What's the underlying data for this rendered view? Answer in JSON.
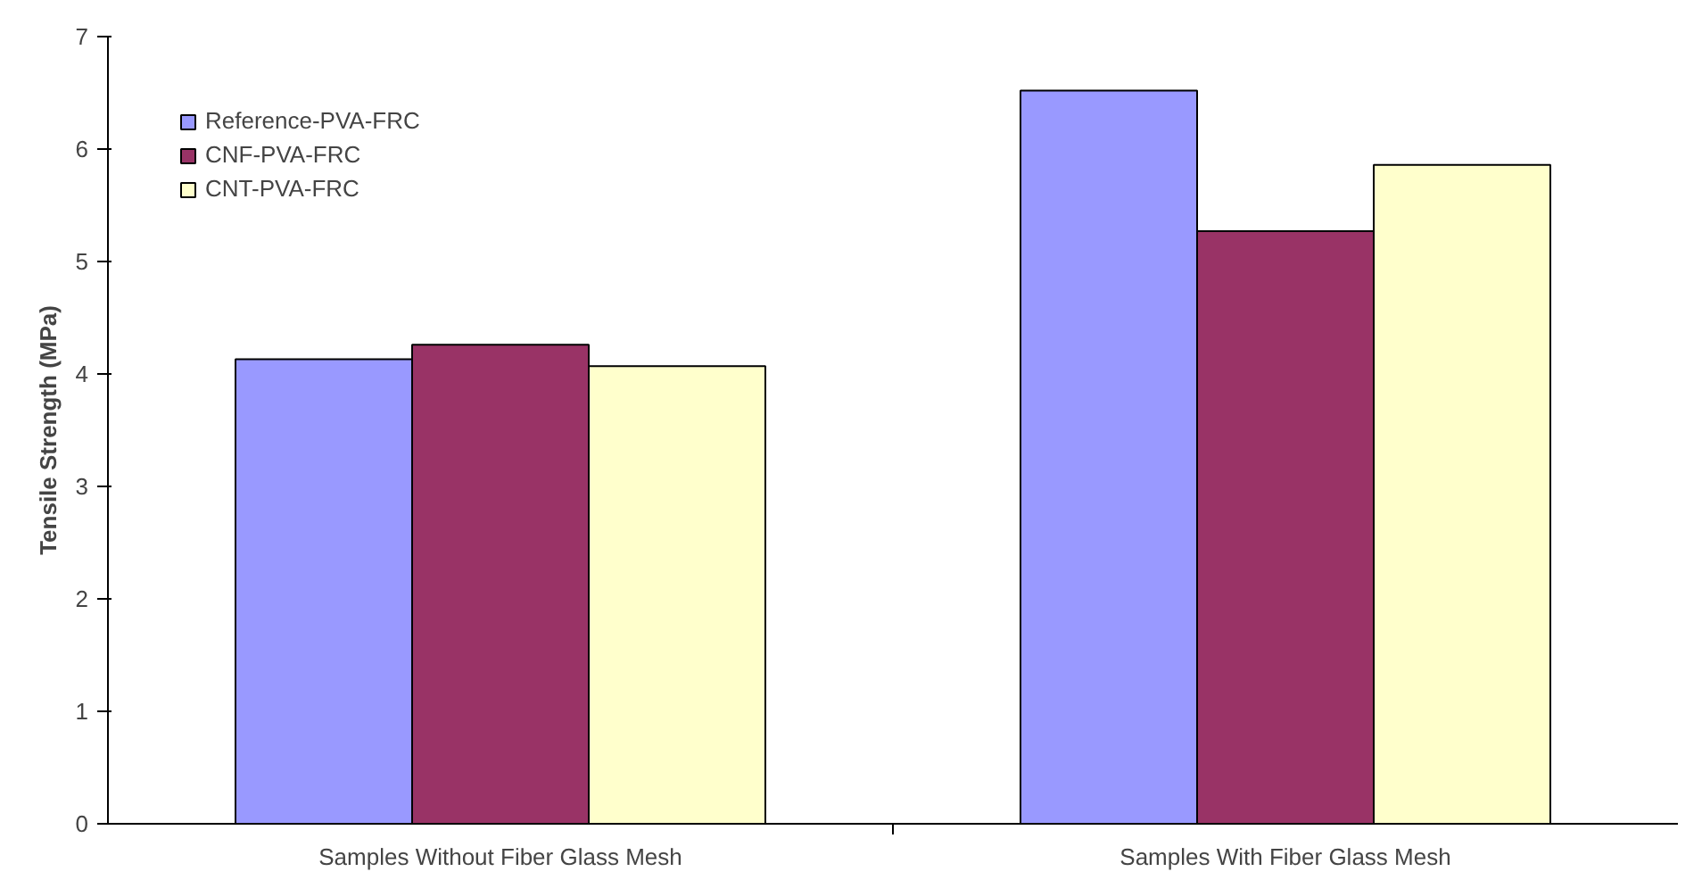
{
  "chart_data": {
    "type": "bar",
    "ylabel": "Tensile Strength (MPa)",
    "categories": [
      "Samples Without Fiber Glass Mesh",
      "Samples With Fiber Glass Mesh"
    ],
    "series": [
      {
        "name": "Reference-PVA-FRC",
        "color": "#9999ff",
        "values": [
          4.13,
          6.52
        ]
      },
      {
        "name": "CNF-PVA-FRC",
        "color": "#993366",
        "values": [
          4.26,
          5.27
        ]
      },
      {
        "name": "CNT-PVA-FRC",
        "color": "#ffffcc",
        "values": [
          4.07,
          5.86
        ]
      }
    ],
    "ylim": [
      0,
      7
    ],
    "yticks": [
      0,
      1,
      2,
      3,
      4,
      5,
      6,
      7
    ],
    "grid": false,
    "legend": "top left"
  }
}
